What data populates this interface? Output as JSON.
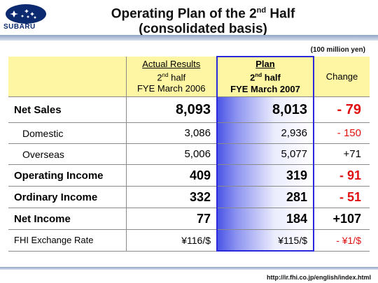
{
  "header": {
    "logo_text": "SUBARU",
    "title_line1_pre": "Operating Plan of the 2",
    "title_line1_sup": "nd",
    "title_line1_post": " Half",
    "title_line2": "(consolidated basis)"
  },
  "unit_note": "(100 million yen)",
  "table": {
    "columns": {
      "actual": {
        "line1": "Actual Results",
        "line2_num": "2",
        "line2_sup": "nd",
        "line2_post": " half",
        "line3": "FYE March 2006"
      },
      "plan": {
        "line1": "Plan",
        "line2_num": "2",
        "line2_sup": "nd",
        "line2_post": " half",
        "line3": "FYE March 2007"
      },
      "change": {
        "line1": "Change"
      }
    },
    "rows": [
      {
        "label": "Net Sales",
        "actual": "8,093",
        "plan": "8,013",
        "change": "- 79"
      },
      {
        "label": "Domestic",
        "actual": "3,086",
        "plan": "2,936",
        "change": "- 150"
      },
      {
        "label": "Overseas",
        "actual": "5,006",
        "plan": "5,077",
        "change": "+71"
      },
      {
        "label": "Operating Income",
        "actual": "409",
        "plan": "319",
        "change": "- 91"
      },
      {
        "label": "Ordinary Income",
        "actual": "332",
        "plan": "281",
        "change": "- 51"
      },
      {
        "label": "Net Income",
        "actual": "77",
        "plan": "184",
        "change": "+107"
      },
      {
        "label": "FHI Exchange Rate",
        "actual": "¥116/$",
        "plan": "¥115/$",
        "change": "- ¥1/$"
      }
    ]
  },
  "footer": {
    "url": "http://ir.fhi.co.jp/english/index.html"
  },
  "colors": {
    "header_fill": "#fff6a3",
    "plan_border": "#2a2adc",
    "negative": "#e01010",
    "logo_blue": "#0b2a6f"
  }
}
